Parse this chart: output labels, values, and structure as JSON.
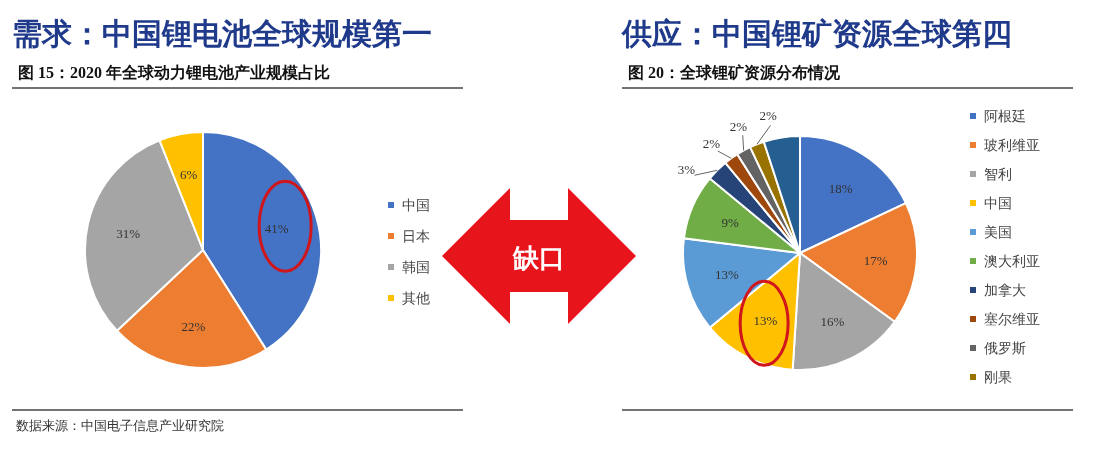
{
  "chart_data": [
    {
      "type": "pie",
      "title": "需求：中国锂电池全球规模第一",
      "subtitle": "图 15：2020 年全球动力锂电池产业规模占比",
      "categories": [
        "中国",
        "日本",
        "韩国",
        "其他"
      ],
      "values": [
        41,
        22,
        31,
        6
      ],
      "colors": [
        "#4472c4",
        "#ed7d31",
        "#a5a5a5",
        "#ffc000"
      ],
      "value_labels": [
        "41%",
        "22%",
        "31%",
        "6%"
      ],
      "legend": "right",
      "annotations": [
        "数据来源：中国电子信息产业研究院"
      ]
    },
    {
      "type": "other",
      "annotations": [
        "缺口"
      ]
    },
    {
      "type": "pie",
      "title": "供应：中国锂矿资源全球第四",
      "subtitle": "图 20：全球锂矿资源分布情况",
      "categories": [
        "阿根廷",
        "玻利维亚",
        "智利",
        "中国",
        "美国",
        "澳大利亚",
        "加拿大",
        "塞尔维亚",
        "俄罗斯",
        "刚果",
        null
      ],
      "values": [
        18,
        17,
        16,
        13,
        13,
        9,
        3,
        2,
        2,
        2,
        5
      ],
      "colors": [
        "#4472c4",
        "#ed7d31",
        "#a5a5a5",
        "#ffc000",
        "#5b9bd5",
        "#70ad47",
        "#264478",
        "#9e480e",
        "#636363",
        "#997300",
        "#255e91"
      ],
      "value_labels": [
        "18%",
        "17%",
        "16%",
        "13%",
        "13%",
        "9%",
        "3%",
        "2%",
        "2%",
        "2%",
        null
      ],
      "legend": "right"
    }
  ]
}
